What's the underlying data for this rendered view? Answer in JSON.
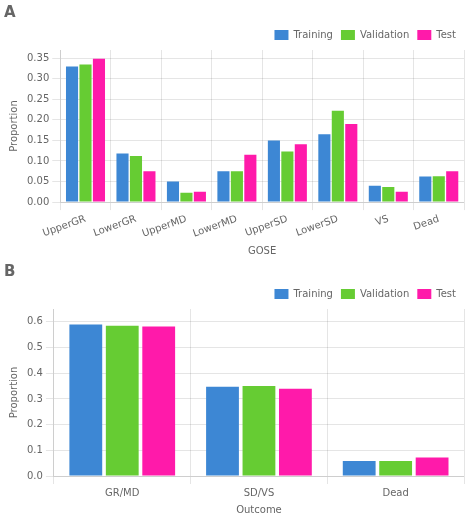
{
  "chart_data": [
    {
      "type": "bar",
      "title": "A",
      "categories": [
        "UpperGR",
        "LowerGR",
        "UpperMD",
        "LowerMD",
        "UpperSD",
        "LowerSD",
        "VS",
        "Dead"
      ],
      "series": [
        {
          "name": "Training",
          "color": "#3d87d4",
          "values": [
            0.33,
            0.118,
            0.05,
            0.075,
            0.15,
            0.165,
            0.04,
            0.062
          ]
        },
        {
          "name": "Validation",
          "color": "#66cc33",
          "values": [
            0.335,
            0.112,
            0.023,
            0.075,
            0.123,
            0.222,
            0.037,
            0.063
          ]
        },
        {
          "name": "Test",
          "color": "#ff1aaa",
          "values": [
            0.349,
            0.075,
            0.025,
            0.115,
            0.141,
            0.19,
            0.025,
            0.075
          ]
        }
      ],
      "xlabel": "GOSE",
      "ylabel": "Proportion",
      "ylim": [
        0.0,
        0.37
      ],
      "yticks": [
        {
          "value": 0.0,
          "label": "0.00"
        },
        0.05,
        {
          "value": 0.1,
          "label": "0.10"
        },
        0.15,
        {
          "value": 0.2,
          "label": "0.20"
        },
        0.25,
        {
          "value": 0.3,
          "label": "0.30"
        },
        0.35
      ],
      "grid": true,
      "legend": "upper right"
    },
    {
      "type": "bar",
      "title": "B",
      "categories": [
        "GR/MD",
        "SD/VS",
        "Dead"
      ],
      "series": [
        {
          "name": "Training",
          "color": "#3d87d4",
          "values": [
            0.59,
            0.347,
            0.058
          ]
        },
        {
          "name": "Validation",
          "color": "#66cc33",
          "values": [
            0.585,
            0.35,
            0.058
          ]
        },
        {
          "name": "Test",
          "color": "#ff1aaa",
          "values": [
            0.582,
            0.34,
            0.072
          ]
        }
      ],
      "xlabel": "Outcome",
      "ylabel": "Proportion",
      "ylim": [
        0.0,
        0.65
      ],
      "yticks": [
        {
          "value": 0.0,
          "label": "0.0"
        },
        0.1,
        0.2,
        0.3,
        0.4,
        0.5,
        0.6
      ],
      "grid": true,
      "legend": "upper right"
    }
  ]
}
